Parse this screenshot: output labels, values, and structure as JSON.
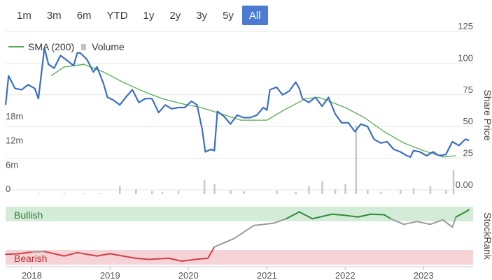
{
  "range_buttons": [
    {
      "label": "1m",
      "active": false
    },
    {
      "label": "3m",
      "active": false
    },
    {
      "label": "6m",
      "active": false
    },
    {
      "label": "YTD",
      "active": false
    },
    {
      "label": "1y",
      "active": false
    },
    {
      "label": "2y",
      "active": false
    },
    {
      "label": "3y",
      "active": false
    },
    {
      "label": "5y",
      "active": false
    },
    {
      "label": "All",
      "active": true
    }
  ],
  "legend": {
    "sma_label": "SMA (200)",
    "volume_label": "Volume"
  },
  "colors": {
    "price": "#3a6fc2",
    "sma": "#55aa55",
    "volume": "#c8c8c8",
    "bullish_bg": "#d3ecd8",
    "bearish_bg": "#f5d3d6",
    "rank_neutral": "#9a9a9a",
    "rank_bull": "#2e8b36",
    "rank_bear": "#d2404a"
  },
  "chart_data": [
    {
      "type": "line",
      "ylabel": "Share Price",
      "x_range": [
        "2017-09",
        "2023-08"
      ],
      "ylim": [
        0,
        125
      ],
      "price_ticks": [
        "0.00",
        "25",
        "50",
        "75",
        "100",
        "125"
      ],
      "volume_ticks": [
        "0",
        "6m",
        "12m",
        "18m"
      ],
      "x_ticks": [
        "2018",
        "2019",
        "2020",
        "2021",
        "2022",
        "2023"
      ],
      "series": [
        {
          "name": "Share Price",
          "points": [
            [
              "2017-09-01",
              67
            ],
            [
              "2017-09-15",
              90
            ],
            [
              "2017-10-15",
              80
            ],
            [
              "2017-11-15",
              79
            ],
            [
              "2017-12-15",
              83
            ],
            [
              "2018-01-15",
              80
            ],
            [
              "2018-02-01",
              72
            ],
            [
              "2018-03-01",
              112
            ],
            [
              "2018-03-20",
              99
            ],
            [
              "2018-04-15",
              96
            ],
            [
              "2018-05-15",
              106
            ],
            [
              "2018-06-15",
              102
            ],
            [
              "2018-07-15",
              98
            ],
            [
              "2018-08-01",
              108
            ],
            [
              "2018-08-15",
              108
            ],
            [
              "2018-09-15",
              103
            ],
            [
              "2018-10-15",
              93
            ],
            [
              "2018-11-01",
              97
            ],
            [
              "2018-12-01",
              84
            ],
            [
              "2018-12-20",
              73
            ],
            [
              "2019-01-15",
              71
            ],
            [
              "2019-02-15",
              67
            ],
            [
              "2019-03-15",
              73
            ],
            [
              "2019-04-15",
              79
            ],
            [
              "2019-05-15",
              69
            ],
            [
              "2019-06-15",
              72
            ],
            [
              "2019-07-15",
              72
            ],
            [
              "2019-08-15",
              61
            ],
            [
              "2019-09-15",
              67
            ],
            [
              "2019-10-15",
              64
            ],
            [
              "2019-11-15",
              65
            ],
            [
              "2019-12-15",
              65
            ],
            [
              "2020-01-15",
              70
            ],
            [
              "2020-02-10",
              67
            ],
            [
              "2020-03-05",
              48
            ],
            [
              "2020-03-20",
              30
            ],
            [
              "2020-04-15",
              32
            ],
            [
              "2020-05-01",
              31
            ],
            [
              "2020-05-15",
              62
            ],
            [
              "2020-06-15",
              58
            ],
            [
              "2020-07-15",
              52
            ],
            [
              "2020-08-15",
              59
            ],
            [
              "2020-09-15",
              57
            ],
            [
              "2020-10-15",
              57
            ],
            [
              "2020-11-15",
              59
            ],
            [
              "2020-12-15",
              65
            ],
            [
              "2021-01-01",
              63
            ],
            [
              "2021-01-15",
              79
            ],
            [
              "2021-02-15",
              81
            ],
            [
              "2021-03-15",
              75
            ],
            [
              "2021-04-15",
              78
            ],
            [
              "2021-05-15",
              85
            ],
            [
              "2021-06-01",
              80
            ],
            [
              "2021-06-15",
              72
            ],
            [
              "2021-07-15",
              69
            ],
            [
              "2021-08-15",
              73
            ],
            [
              "2021-09-15",
              66
            ],
            [
              "2021-10-15",
              73
            ],
            [
              "2021-11-15",
              60
            ],
            [
              "2021-12-15",
              53
            ],
            [
              "2022-01-15",
              53
            ],
            [
              "2022-02-15",
              46
            ],
            [
              "2022-03-15",
              52
            ],
            [
              "2022-04-15",
              50
            ],
            [
              "2022-05-15",
              40
            ],
            [
              "2022-06-15",
              37
            ],
            [
              "2022-07-15",
              38
            ],
            [
              "2022-08-15",
              32
            ],
            [
              "2022-09-15",
              30
            ],
            [
              "2022-10-15",
              27
            ],
            [
              "2022-11-01",
              26
            ],
            [
              "2022-11-15",
              31
            ],
            [
              "2022-12-15",
              30
            ],
            [
              "2023-01-15",
              27
            ],
            [
              "2023-02-15",
              30
            ],
            [
              "2023-03-15",
              27
            ],
            [
              "2023-04-15",
              28
            ],
            [
              "2023-05-15",
              38
            ],
            [
              "2023-06-15",
              35
            ],
            [
              "2023-07-15",
              40
            ],
            [
              "2023-08-01",
              39
            ]
          ]
        },
        {
          "name": "SMA (200)",
          "points": [
            [
              "2018-04-01",
              90
            ],
            [
              "2018-06-01",
              97
            ],
            [
              "2018-09-01",
              99
            ],
            [
              "2018-12-01",
              93
            ],
            [
              "2019-03-01",
              85
            ],
            [
              "2019-06-01",
              78
            ],
            [
              "2019-09-01",
              72
            ],
            [
              "2019-12-01",
              68
            ],
            [
              "2020-03-01",
              65
            ],
            [
              "2020-06-01",
              60
            ],
            [
              "2020-09-01",
              55
            ],
            [
              "2021-01-01",
              55
            ],
            [
              "2021-04-01",
              64
            ],
            [
              "2021-07-01",
              72
            ],
            [
              "2021-09-01",
              73
            ],
            [
              "2022-01-01",
              65
            ],
            [
              "2022-04-01",
              57
            ],
            [
              "2022-07-01",
              46
            ],
            [
              "2022-10-01",
              37
            ],
            [
              "2023-01-01",
              31
            ],
            [
              "2023-04-01",
              26
            ],
            [
              "2023-06-01",
              27
            ]
          ]
        },
        {
          "name": "Volume",
          "bars": [
            [
              "2018-02-01",
              0.2
            ],
            [
              "2018-06-01",
              0.3
            ],
            [
              "2018-09-01",
              0.2
            ],
            [
              "2018-11-15",
              0.2
            ],
            [
              "2019-02-15",
              2.0
            ],
            [
              "2019-05-01",
              1.2
            ],
            [
              "2019-07-15",
              0.8
            ],
            [
              "2019-09-01",
              0.5
            ],
            [
              "2019-11-15",
              0.8
            ],
            [
              "2020-03-15",
              3.5
            ],
            [
              "2020-05-01",
              2.5
            ],
            [
              "2020-07-15",
              1.0
            ],
            [
              "2020-09-15",
              0.7
            ],
            [
              "2021-02-15",
              0.9
            ],
            [
              "2021-05-15",
              0.5
            ],
            [
              "2021-07-15",
              2.0
            ],
            [
              "2021-09-15",
              3.2
            ],
            [
              "2021-11-15",
              1.2
            ],
            [
              "2022-01-01",
              2.5
            ],
            [
              "2022-02-20",
              17.0
            ],
            [
              "2022-04-15",
              1.0
            ],
            [
              "2022-06-15",
              0.6
            ],
            [
              "2022-09-15",
              1.0
            ],
            [
              "2022-11-15",
              1.5
            ],
            [
              "2023-02-01",
              2.0
            ],
            [
              "2023-04-15",
              1.0
            ],
            [
              "2023-05-20",
              6.0
            ]
          ]
        }
      ]
    },
    {
      "type": "line",
      "ylabel": "StockRank",
      "band_labels": {
        "top": "Bullish",
        "bottom": "Bearish"
      },
      "ylim": [
        0,
        100
      ],
      "series": [
        {
          "name": "StockRank",
          "points": [
            [
              "2017-09-01",
              17
            ],
            [
              "2017-11-01",
              18
            ],
            [
              "2018-01-01",
              21
            ],
            [
              "2018-03-01",
              22
            ],
            [
              "2018-06-01",
              14
            ],
            [
              "2018-08-01",
              20
            ],
            [
              "2018-11-01",
              14
            ],
            [
              "2019-01-01",
              18
            ],
            [
              "2019-03-01",
              14
            ],
            [
              "2019-05-01",
              10
            ],
            [
              "2019-07-01",
              8
            ],
            [
              "2019-10-01",
              10
            ],
            [
              "2019-12-01",
              5
            ],
            [
              "2020-02-01",
              8
            ],
            [
              "2020-04-01",
              10
            ],
            [
              "2020-05-01",
              30
            ],
            [
              "2020-08-01",
              45
            ],
            [
              "2020-11-01",
              68
            ],
            [
              "2021-02-01",
              72
            ],
            [
              "2021-04-01",
              80
            ],
            [
              "2021-06-01",
              92
            ],
            [
              "2021-08-01",
              80
            ],
            [
              "2021-11-01",
              88
            ],
            [
              "2022-01-01",
              86
            ],
            [
              "2022-03-01",
              83
            ],
            [
              "2022-05-01",
              88
            ],
            [
              "2022-07-01",
              87
            ],
            [
              "2022-08-01",
              80
            ],
            [
              "2022-10-01",
              70
            ],
            [
              "2022-12-01",
              75
            ],
            [
              "2023-02-01",
              70
            ],
            [
              "2023-04-01",
              78
            ],
            [
              "2023-05-15",
              65
            ],
            [
              "2023-06-01",
              83
            ],
            [
              "2023-07-15",
              92
            ],
            [
              "2023-08-01",
              96
            ]
          ]
        }
      ]
    }
  ]
}
